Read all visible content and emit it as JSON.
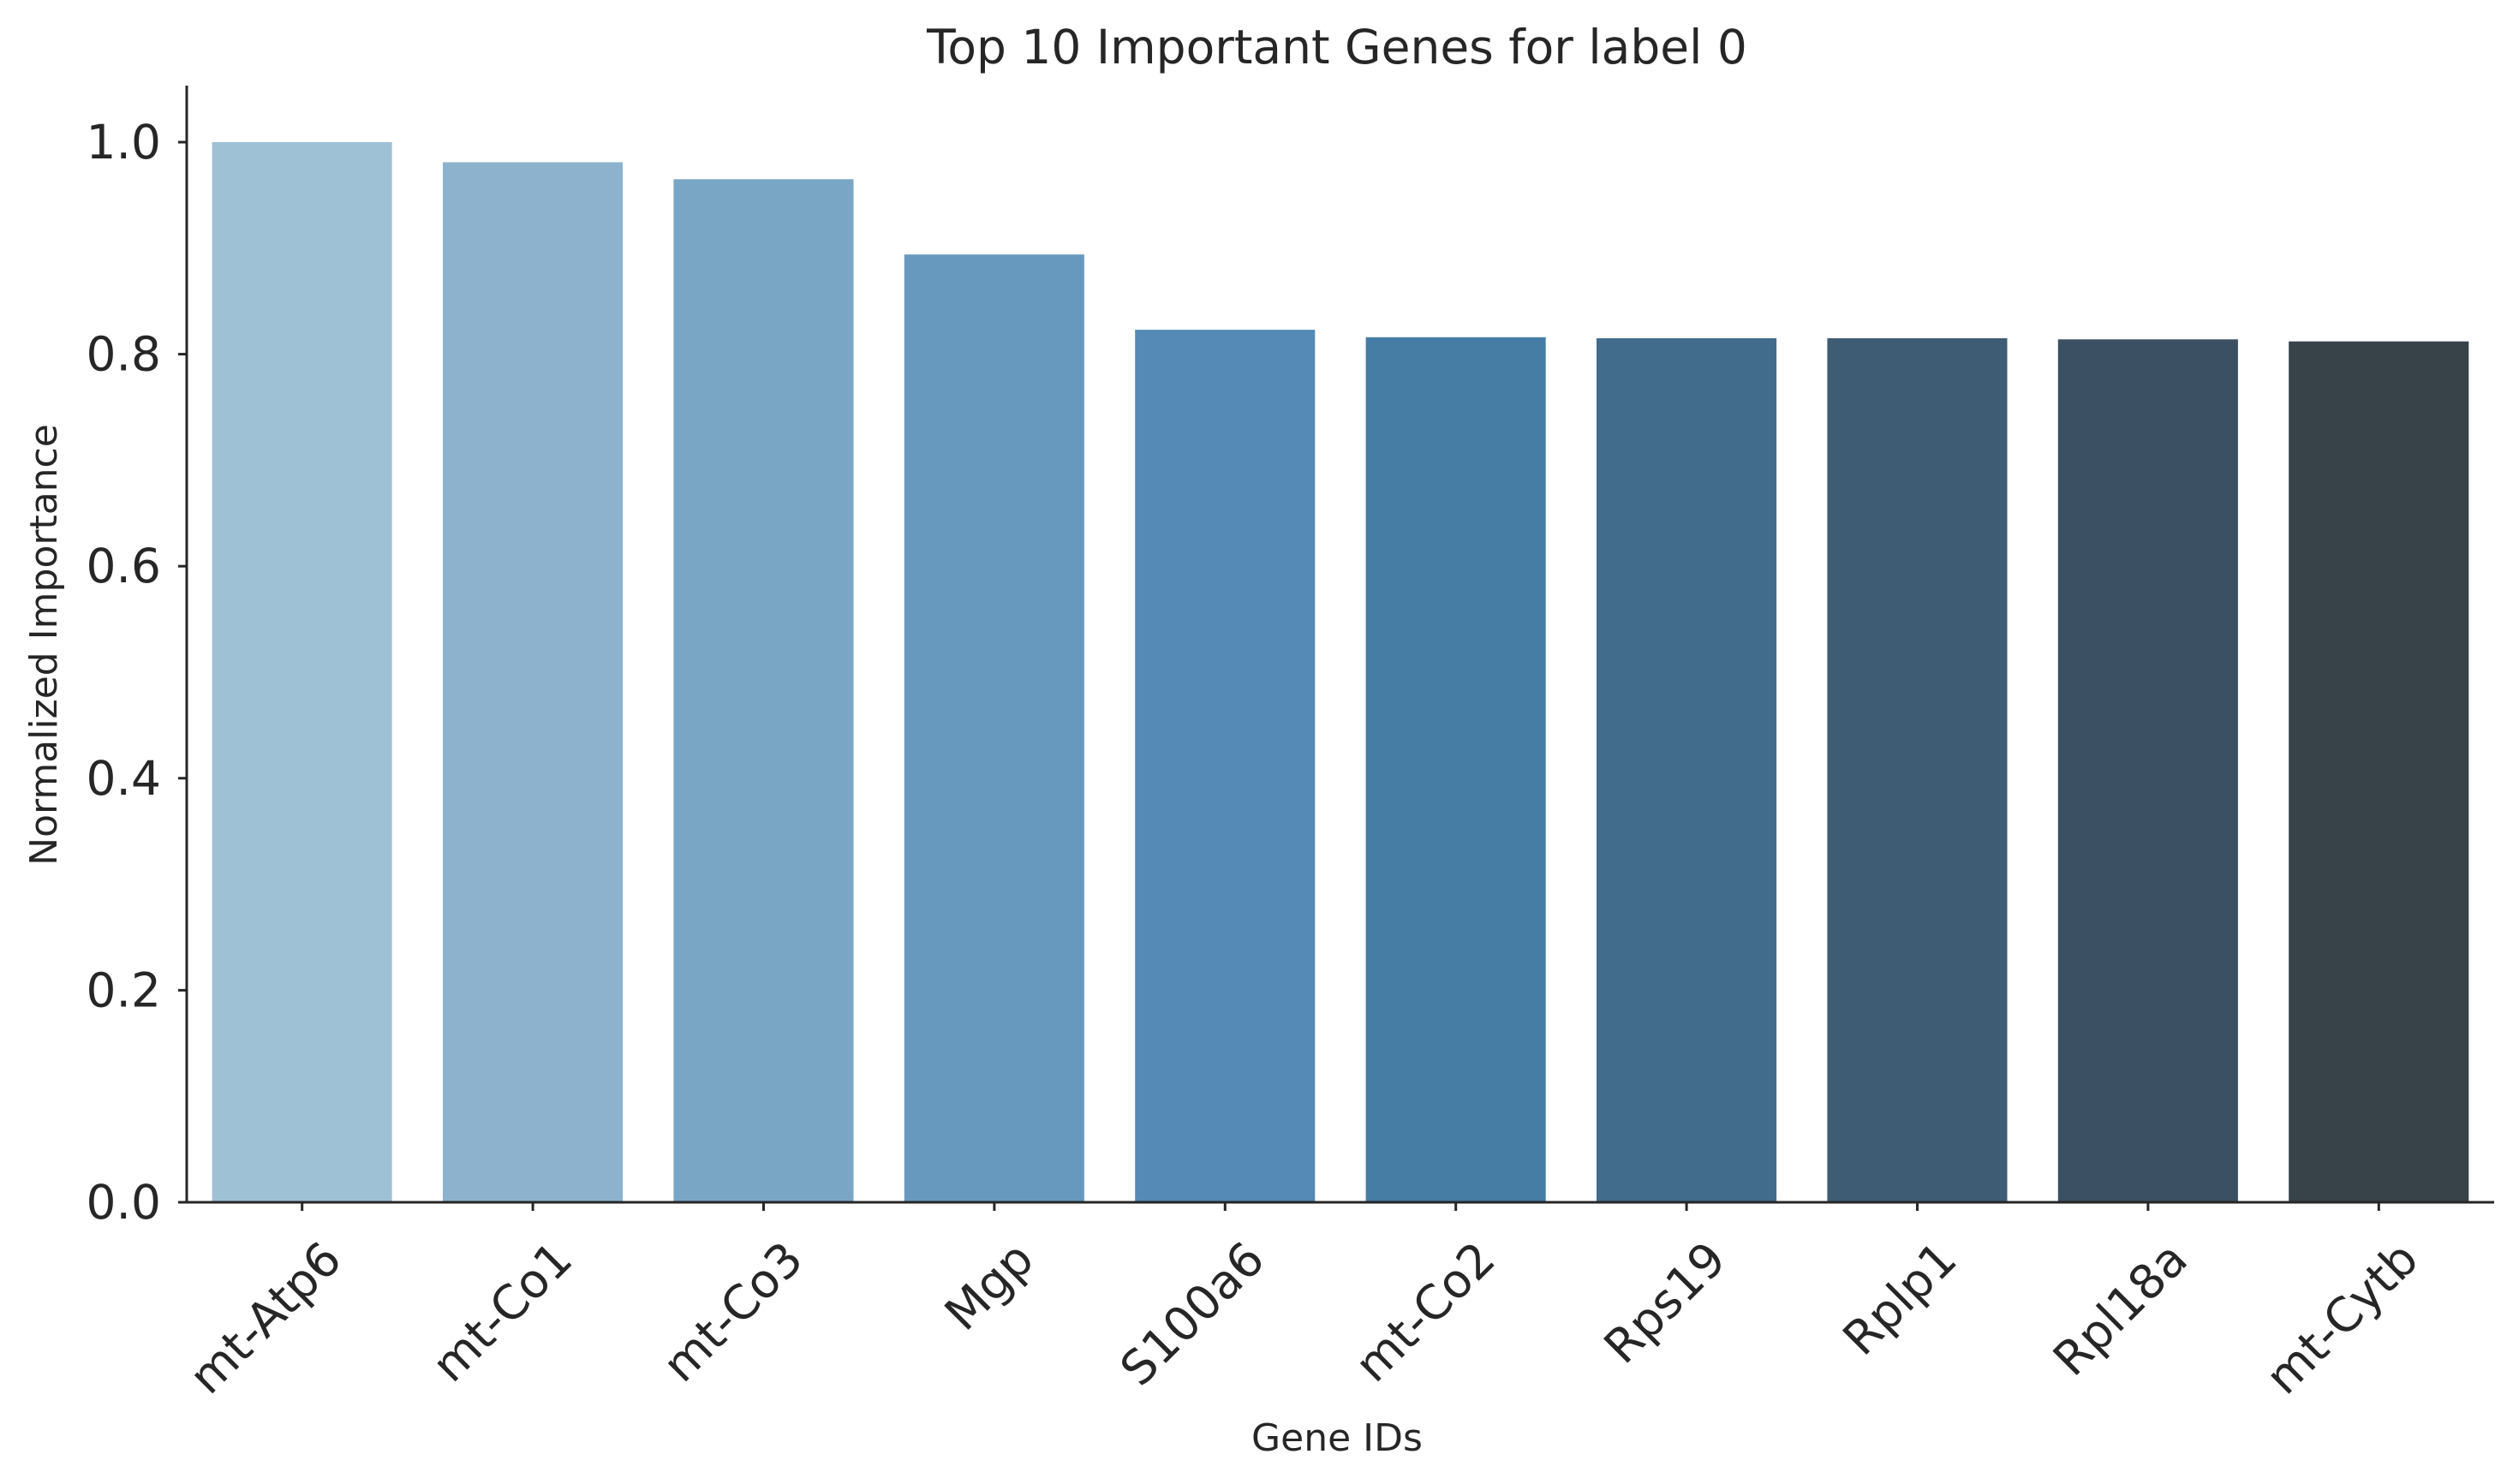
{
  "chart_data": {
    "type": "bar",
    "title": "Top 10 Important Genes for label 0",
    "xlabel": "Gene IDs",
    "ylabel": "Normalized Importance",
    "categories": [
      "mt-Atp6",
      "mt-Co1",
      "mt-Co3",
      "Mgp",
      "S100a6",
      "mt-Co2",
      "Rps19",
      "Rplp1",
      "Rpl18a",
      "mt-Cytb"
    ],
    "values": [
      1.0,
      0.981,
      0.965,
      0.894,
      0.823,
      0.816,
      0.815,
      0.815,
      0.814,
      0.812
    ],
    "colors": [
      "#9fc1d6",
      "#8cb2cd",
      "#7aa6c5",
      "#6799bf",
      "#548ab5",
      "#467da4",
      "#416c8b",
      "#3e5d74",
      "#3b5063",
      "#374249"
    ],
    "yticks": [
      "0.0",
      "0.2",
      "0.4",
      "0.6",
      "0.8",
      "1.0"
    ],
    "ylim": [
      0,
      1.05
    ],
    "grid": false,
    "legend": false
  }
}
